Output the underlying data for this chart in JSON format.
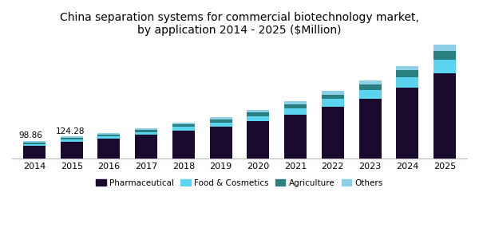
{
  "title": "China separation systems for commercial biotechnology market,\nby application 2014 - 2025 ($Million)",
  "years": [
    2014,
    2015,
    2016,
    2017,
    2018,
    2019,
    2020,
    2021,
    2022,
    2023,
    2024,
    2025
  ],
  "pharmaceutical": [
    72.0,
    96.0,
    112.0,
    134.0,
    158.0,
    178.0,
    208.0,
    245.0,
    290.0,
    335.0,
    395.0,
    475.0
  ],
  "food_cosmetics": [
    10.0,
    13.0,
    14.0,
    16.0,
    20.0,
    25.0,
    30.0,
    36.0,
    42.0,
    50.0,
    60.0,
    78.0
  ],
  "agriculture": [
    9.0,
    9.0,
    10.0,
    11.0,
    13.0,
    16.0,
    19.0,
    23.0,
    26.0,
    30.0,
    37.0,
    48.0
  ],
  "others": [
    7.86,
    6.28,
    7.0,
    8.0,
    10.0,
    12.0,
    14.0,
    17.0,
    19.0,
    22.0,
    26.0,
    35.0
  ],
  "label_2014": "98.86",
  "label_2015": "124.28",
  "colors": {
    "pharmaceutical": "#1a0a2e",
    "food_cosmetics": "#5bd4f0",
    "agriculture": "#2a8080",
    "others": "#8ecfe8"
  },
  "legend_labels": [
    "Pharmaceutical",
    "Food & Cosmetics",
    "Agriculture",
    "Others"
  ],
  "bar_width": 0.6,
  "ylim": [
    0,
    660
  ],
  "background_color": "#ffffff",
  "title_fontsize": 10.0
}
